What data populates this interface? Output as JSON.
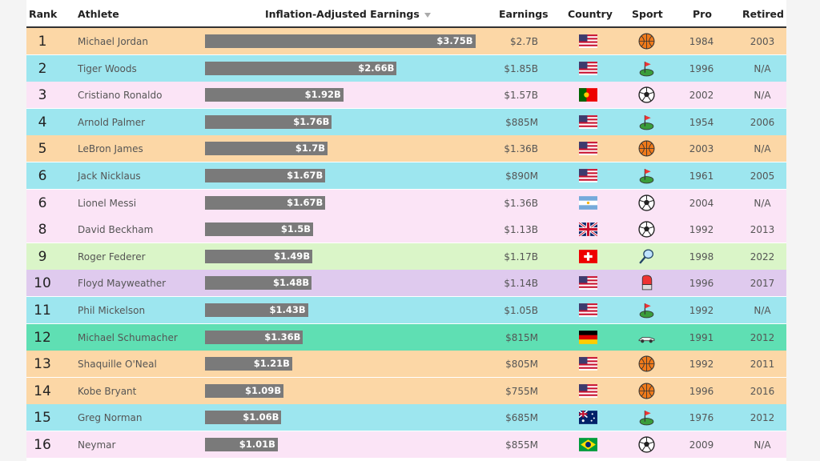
{
  "table": {
    "header": {
      "rank": "Rank",
      "athlete": "Athlete",
      "adjusted": "Inflation-Adjusted Earnings",
      "earnings": "Earnings",
      "country": "Country",
      "sport": "Sport",
      "pro": "Pro",
      "retired": "Retired"
    },
    "rows": [
      {
        "rank": 1,
        "athlete": "Michael Jordan",
        "adjusted": {
          "value": 3.75,
          "label": "$3.75B"
        },
        "earnings": "$2.7B",
        "pro": 1984,
        "retired": 2003
      },
      {
        "rank": 2,
        "athlete": "Tiger Woods",
        "adjusted": {
          "value": 2.66,
          "label": "$2.66B"
        },
        "earnings": "$1.85B",
        "pro": 1996,
        "retired": "N/A"
      },
      {
        "rank": 3,
        "athlete": "Cristiano Ronaldo",
        "adjusted": {
          "value": 1.92,
          "label": "$1.92B"
        },
        "earnings": "$1.57B",
        "pro": 2002,
        "retired": "N/A"
      },
      {
        "rank": 4,
        "athlete": "Arnold Palmer",
        "adjusted": {
          "value": 1.76,
          "label": "$1.76B"
        },
        "earnings": "$885M",
        "pro": 1954,
        "retired": 2006
      },
      {
        "rank": 5,
        "athlete": "LeBron James",
        "adjusted": {
          "value": 1.7,
          "label": "$1.7B"
        },
        "earnings": "$1.36B",
        "pro": 2003,
        "retired": "N/A"
      },
      {
        "rank": 6,
        "athlete": "Jack Nicklaus",
        "adjusted": {
          "value": 1.67,
          "label": "$1.67B"
        },
        "earnings": "$890M",
        "pro": 1961,
        "retired": 2005
      },
      {
        "rank": 6,
        "athlete": "Lionel Messi",
        "adjusted": {
          "value": 1.67,
          "label": "$1.67B"
        },
        "earnings": "$1.36B",
        "pro": 2004,
        "retired": "N/A"
      },
      {
        "rank": 8,
        "athlete": "David Beckham",
        "adjusted": {
          "value": 1.5,
          "label": "$1.5B"
        },
        "earnings": "$1.13B",
        "pro": 1992,
        "retired": 2013
      },
      {
        "rank": 9,
        "athlete": "Roger Federer",
        "adjusted": {
          "value": 1.49,
          "label": "$1.49B"
        },
        "earnings": "$1.17B",
        "pro": 1998,
        "retired": 2022
      },
      {
        "rank": 10,
        "athlete": "Floyd Mayweather",
        "adjusted": {
          "value": 1.48,
          "label": "$1.48B"
        },
        "earnings": "$1.14B",
        "pro": 1996,
        "retired": 2017
      },
      {
        "rank": 11,
        "athlete": "Phil Mickelson",
        "adjusted": {
          "value": 1.43,
          "label": "$1.43B"
        },
        "earnings": "$1.05B",
        "pro": 1992,
        "retired": "N/A"
      },
      {
        "rank": 12,
        "athlete": "Michael Schumacher",
        "adjusted": {
          "value": 1.36,
          "label": "$1.36B"
        },
        "earnings": "$815M",
        "pro": 1991,
        "retired": 2012
      },
      {
        "rank": 13,
        "athlete": "Shaquille O'Neal",
        "adjusted": {
          "value": 1.21,
          "label": "$1.21B"
        },
        "earnings": "$805M",
        "pro": 1992,
        "retired": 2011
      },
      {
        "rank": 14,
        "athlete": "Kobe Bryant",
        "adjusted": {
          "value": 1.09,
          "label": "$1.09B"
        },
        "earnings": "$755M",
        "pro": 1996,
        "retired": 2016
      },
      {
        "rank": 15,
        "athlete": "Greg Norman",
        "adjusted": {
          "value": 1.06,
          "label": "$1.06B"
        },
        "earnings": "$685M",
        "pro": 1976,
        "retired": 2012
      },
      {
        "rank": 16,
        "athlete": "Neymar",
        "adjusted": {
          "value": 1.01,
          "label": "$1.01B"
        },
        "earnings": "$855M",
        "pro": 2009,
        "retired": "N/A"
      }
    ]
  }
}
